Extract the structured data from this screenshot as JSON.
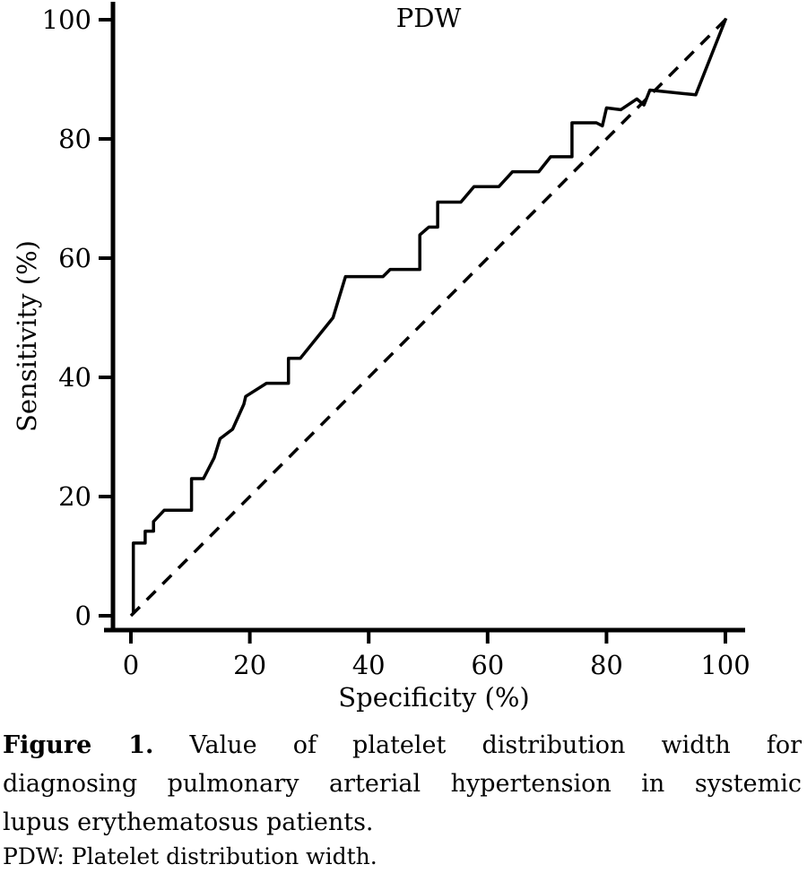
{
  "figure": {
    "caption": {
      "label": "Figure 1.",
      "line1_rest": "Value of platelet distribution width for",
      "line2": "diagnosing pulmonary arterial hypertension in systemic",
      "line3": "lupus erythematosus patients.",
      "note": "PDW: Platelet distribution width."
    }
  },
  "chart_data": {
    "type": "line",
    "title": "PDW",
    "xlabel": "Specificity (%)",
    "ylabel": "Sensitivity (%)",
    "xlim": [
      0,
      100
    ],
    "ylim": [
      0,
      100
    ],
    "x_ticks": [
      0,
      20,
      40,
      60,
      80,
      100
    ],
    "y_ticks": [
      0,
      20,
      40,
      60,
      80,
      100
    ],
    "grid": false,
    "legend": "none",
    "colors": {
      "curve": "#000000",
      "reference": "#000000",
      "background": "#ffffff"
    },
    "series": [
      {
        "name": "PDW ROC curve",
        "style": "solid",
        "points": [
          [
            0.4,
            0.6
          ],
          [
            0.4,
            12.2
          ],
          [
            2.4,
            12.2
          ],
          [
            2.4,
            14.2
          ],
          [
            3.8,
            14.2
          ],
          [
            3.8,
            15.8
          ],
          [
            5.6,
            17.7
          ],
          [
            10.2,
            17.7
          ],
          [
            10.2,
            23.0
          ],
          [
            12.2,
            23.0
          ],
          [
            14.0,
            26.5
          ],
          [
            15.0,
            29.7
          ],
          [
            17.1,
            31.3
          ],
          [
            19.0,
            35.5
          ],
          [
            19.3,
            36.8
          ],
          [
            22.8,
            39.0
          ],
          [
            26.5,
            39.0
          ],
          [
            26.5,
            43.2
          ],
          [
            28.5,
            43.2
          ],
          [
            34.0,
            50.0
          ],
          [
            36.1,
            56.9
          ],
          [
            42.4,
            56.9
          ],
          [
            43.6,
            58.1
          ],
          [
            48.6,
            58.1
          ],
          [
            48.6,
            63.9
          ],
          [
            50.1,
            65.2
          ],
          [
            51.6,
            65.2
          ],
          [
            51.6,
            69.4
          ],
          [
            55.5,
            69.4
          ],
          [
            57.7,
            72.0
          ],
          [
            61.9,
            72.0
          ],
          [
            64.2,
            74.5
          ],
          [
            68.6,
            74.5
          ],
          [
            70.6,
            77.0
          ],
          [
            74.2,
            77.0
          ],
          [
            74.2,
            82.7
          ],
          [
            78.3,
            82.7
          ],
          [
            79.3,
            82.2
          ],
          [
            80.0,
            85.2
          ],
          [
            82.4,
            84.9
          ],
          [
            85.1,
            86.7
          ],
          [
            86.3,
            85.7
          ],
          [
            87.3,
            88.2
          ],
          [
            95.0,
            87.4
          ],
          [
            100,
            100
          ]
        ]
      }
    ],
    "reference_line": {
      "name": "chance diagonal",
      "style": "dashed",
      "points": [
        [
          0,
          0
        ],
        [
          100,
          100
        ]
      ]
    }
  }
}
